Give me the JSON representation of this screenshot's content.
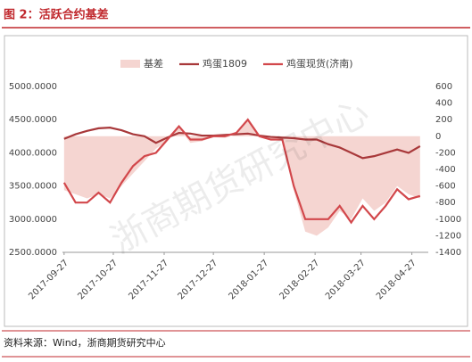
{
  "title": "图 2：活跃合约基差",
  "source": "资料来源：Wind，浙商期货研究中心",
  "watermark": "浙商期货研究中心",
  "chart_data": {
    "type": "line",
    "x": [
      "2017-09-27",
      "2017-10-04",
      "2017-10-11",
      "2017-10-18",
      "2017-10-25",
      "2017-11-01",
      "2017-11-08",
      "2017-11-15",
      "2017-11-22",
      "2017-11-29",
      "2017-12-06",
      "2017-12-13",
      "2017-12-20",
      "2017-12-27",
      "2018-01-03",
      "2018-01-10",
      "2018-01-17",
      "2018-01-24",
      "2018-01-31",
      "2018-02-07",
      "2018-02-14",
      "2018-02-21",
      "2018-02-28",
      "2018-03-07",
      "2018-03-14",
      "2018-03-21",
      "2018-03-28",
      "2018-04-04",
      "2018-04-11",
      "2018-04-18",
      "2018-04-25",
      "2018-05-02"
    ],
    "xlim": [
      "2017-09-26",
      "2018-05-07"
    ],
    "xticks": [
      "2017-09-27",
      "2017-10-27",
      "2017-11-27",
      "2017-12-27",
      "2018-01-27",
      "2018-02-27",
      "2018-03-27",
      "2018-04-27"
    ],
    "ylim": [
      2500,
      5000
    ],
    "yticks": [
      {
        "value": 2500,
        "label": "2500.0000"
      },
      {
        "value": 3000,
        "label": "3000.0000"
      },
      {
        "value": 3500,
        "label": "3500.0000"
      },
      {
        "value": 4000,
        "label": "4000.0000"
      },
      {
        "value": 4500,
        "label": "4500.0000"
      },
      {
        "value": 5000,
        "label": "5000.0000"
      }
    ],
    "y2lim": [
      -1400,
      600
    ],
    "y2ticks": [
      -1400,
      -1200,
      -1000,
      -800,
      -600,
      -400,
      -200,
      0,
      200,
      400,
      600
    ],
    "series": [
      {
        "name": "基差",
        "kind": "area",
        "axis": "y2",
        "color": "#f5d5d1",
        "values": [
          -650,
          -700,
          -750,
          -700,
          -750,
          -600,
          -450,
          -300,
          -150,
          -50,
          100,
          -80,
          -60,
          -10,
          -20,
          20,
          200,
          -10,
          -40,
          -30,
          -650,
          -1150,
          -1200,
          -1100,
          -900,
          -1000,
          -750,
          -900,
          -800,
          -600,
          -700,
          -750
        ]
      },
      {
        "name": "鸡蛋1809",
        "kind": "line",
        "color": "#a8383a",
        "values": [
          4210,
          4280,
          4330,
          4370,
          4380,
          4340,
          4280,
          4250,
          4150,
          4230,
          4300,
          4290,
          4260,
          4260,
          4270,
          4280,
          4290,
          4260,
          4240,
          4230,
          4220,
          4200,
          4200,
          4130,
          4080,
          4000,
          3920,
          3950,
          4000,
          4050,
          4000,
          4100
        ]
      },
      {
        "name": "鸡蛋现货(济南)",
        "kind": "line",
        "color": "#d2474b",
        "values": [
          3550,
          3250,
          3250,
          3400,
          3250,
          3550,
          3800,
          3950,
          4000,
          4200,
          4400,
          4200,
          4200,
          4250,
          4250,
          4300,
          4500,
          4250,
          4200,
          4200,
          3500,
          3000,
          3000,
          3000,
          3200,
          2950,
          3200,
          3000,
          3200,
          3450,
          3300,
          3350
        ]
      }
    ]
  }
}
